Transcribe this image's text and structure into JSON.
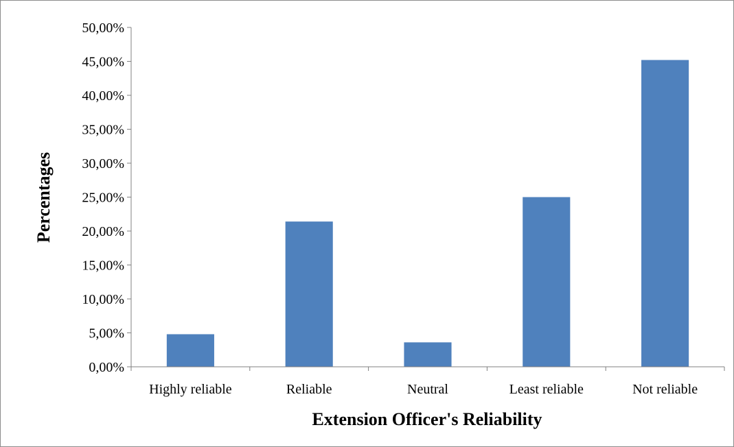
{
  "chart_data": {
    "type": "bar",
    "title": "",
    "xlabel": "Extension Officer's Reliability",
    "ylabel": "Percentages",
    "categories": [
      "Highly reliable",
      "Reliable",
      "Neutral",
      "Least reliable",
      "Not reliable"
    ],
    "values": [
      4.8,
      21.4,
      3.6,
      25.0,
      45.2
    ],
    "ylim": [
      0,
      50
    ],
    "y_ticks": [
      0,
      5,
      10,
      15,
      20,
      25,
      30,
      35,
      40,
      45,
      50
    ],
    "y_tick_labels": [
      "0,00%",
      "5,00%",
      "10,00%",
      "15,00%",
      "20,00%",
      "25,00%",
      "30,00%",
      "35,00%",
      "40,00%",
      "45,00%",
      "50,00%"
    ],
    "grid": false,
    "legend": "none",
    "bar_color": "#4f81bd"
  }
}
